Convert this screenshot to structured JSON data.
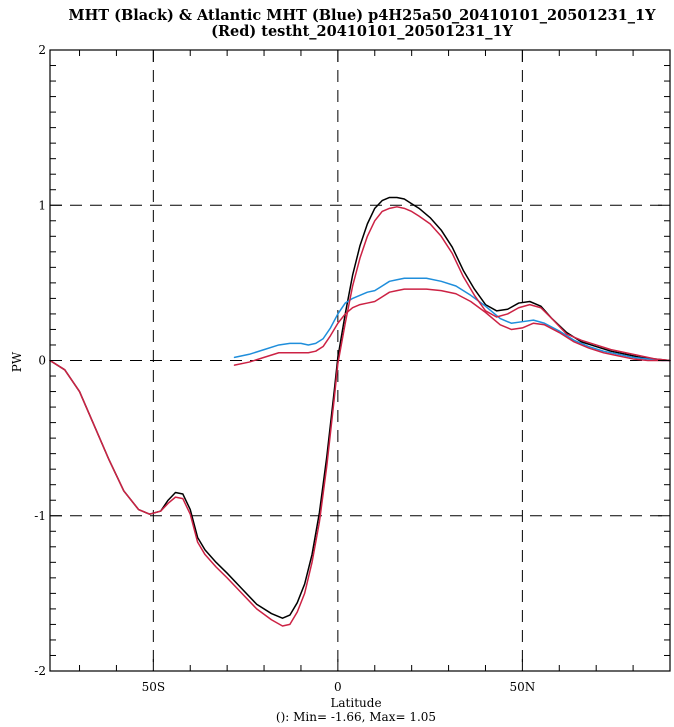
{
  "chart_data": {
    "type": "line",
    "title": "MHT (Black) & Atlantic MHT (Blue) p4H25a50_20410101_20501231_1Y",
    "subtitle": "(Red) testht_20410101_20501231_1Y",
    "xlabel": "Latitude",
    "ylabel": "PW",
    "footnote": "(): Min= -1.66, Max= 1.05",
    "xlim": [
      -78,
      90
    ],
    "ylim": [
      -2,
      2
    ],
    "x_major_ticks": [
      {
        "value": -50,
        "label": "50S"
      },
      {
        "value": 0,
        "label": "0"
      },
      {
        "value": 50,
        "label": "50N"
      }
    ],
    "y_major_ticks": [
      {
        "value": -2,
        "label": "-2"
      },
      {
        "value": -1,
        "label": "-1"
      },
      {
        "value": 0,
        "label": "0"
      },
      {
        "value": 1,
        "label": "1"
      },
      {
        "value": 2,
        "label": "2"
      }
    ],
    "grid": "dashed at major ticks",
    "series": [
      {
        "color": "#000000",
        "x": [
          -78,
          -74,
          -70,
          -66,
          -62,
          -58,
          -54,
          -51,
          -48,
          -46,
          -44,
          -42,
          -40,
          -38,
          -36,
          -33,
          -30,
          -26,
          -22,
          -18,
          -15,
          -13,
          -11,
          -9,
          -7,
          -5,
          -3,
          -1,
          0,
          2,
          4,
          6,
          8,
          10,
          12,
          14,
          16,
          18,
          20,
          22,
          25,
          28,
          31,
          34,
          37,
          40,
          43,
          46,
          49,
          52,
          55,
          58,
          62,
          66,
          70,
          74,
          78,
          82,
          86,
          90
        ],
        "y": [
          0,
          -0.06,
          -0.2,
          -0.42,
          -0.64,
          -0.84,
          -0.96,
          -0.99,
          -0.97,
          -0.9,
          -0.85,
          -0.86,
          -0.96,
          -1.14,
          -1.22,
          -1.3,
          -1.37,
          -1.47,
          -1.57,
          -1.63,
          -1.66,
          -1.64,
          -1.56,
          -1.44,
          -1.25,
          -0.98,
          -0.62,
          -0.2,
          0.02,
          0.3,
          0.55,
          0.74,
          0.88,
          0.98,
          1.03,
          1.05,
          1.05,
          1.04,
          1.01,
          0.98,
          0.92,
          0.84,
          0.73,
          0.58,
          0.46,
          0.36,
          0.32,
          0.33,
          0.37,
          0.38,
          0.35,
          0.27,
          0.18,
          0.12,
          0.09,
          0.06,
          0.04,
          0.02,
          0.01,
          0.0
        ]
      },
      {
        "color": "#1f8edb",
        "x": [
          -28,
          -24,
          -20,
          -16,
          -13,
          -10,
          -8,
          -6,
          -4,
          -2,
          0,
          2,
          4,
          6,
          8,
          10,
          12,
          14,
          16,
          18,
          20,
          24,
          28,
          32,
          36,
          40,
          44,
          47,
          50,
          53,
          56,
          60,
          64,
          68,
          72,
          76,
          80,
          84,
          88,
          90
        ],
        "y": [
          0.02,
          0.04,
          0.07,
          0.1,
          0.11,
          0.11,
          0.1,
          0.11,
          0.14,
          0.21,
          0.3,
          0.37,
          0.4,
          0.42,
          0.44,
          0.45,
          0.48,
          0.51,
          0.52,
          0.53,
          0.53,
          0.53,
          0.51,
          0.48,
          0.42,
          0.35,
          0.27,
          0.24,
          0.25,
          0.26,
          0.24,
          0.19,
          0.13,
          0.09,
          0.06,
          0.04,
          0.02,
          0.01,
          0.0,
          0.0
        ]
      },
      {
        "color": "#cc2244",
        "x": [
          -78,
          -74,
          -70,
          -66,
          -62,
          -58,
          -54,
          -51,
          -48,
          -46,
          -44,
          -42,
          -40,
          -38,
          -36,
          -33,
          -30,
          -26,
          -22,
          -18,
          -15,
          -13,
          -11,
          -9,
          -7,
          -5,
          -3,
          -1,
          0,
          2,
          4,
          6,
          8,
          10,
          12,
          14,
          16,
          18,
          20,
          22,
          25,
          28,
          31,
          34,
          37,
          40,
          43,
          46,
          49,
          52,
          55,
          58,
          62,
          66,
          70,
          74,
          78,
          82,
          86,
          90
        ],
        "y": [
          0,
          -0.06,
          -0.2,
          -0.42,
          -0.64,
          -0.84,
          -0.96,
          -0.99,
          -0.97,
          -0.92,
          -0.88,
          -0.89,
          -0.99,
          -1.17,
          -1.25,
          -1.33,
          -1.4,
          -1.5,
          -1.6,
          -1.67,
          -1.71,
          -1.7,
          -1.62,
          -1.5,
          -1.3,
          -1.04,
          -0.68,
          -0.25,
          -0.02,
          0.24,
          0.48,
          0.66,
          0.8,
          0.9,
          0.96,
          0.98,
          0.99,
          0.98,
          0.96,
          0.93,
          0.88,
          0.8,
          0.69,
          0.54,
          0.42,
          0.32,
          0.28,
          0.3,
          0.34,
          0.36,
          0.34,
          0.27,
          0.17,
          0.13,
          0.1,
          0.07,
          0.05,
          0.03,
          0.01,
          0.0
        ]
      },
      {
        "color": "#cc2244",
        "x": [
          -28,
          -24,
          -20,
          -16,
          -13,
          -10,
          -8,
          -6,
          -4,
          -2,
          0,
          2,
          4,
          6,
          8,
          10,
          12,
          14,
          16,
          18,
          20,
          24,
          28,
          32,
          36,
          40,
          44,
          47,
          50,
          53,
          56,
          60,
          64,
          68,
          72,
          76,
          80,
          84,
          88,
          90
        ],
        "y": [
          -0.03,
          -0.01,
          0.02,
          0.05,
          0.05,
          0.05,
          0.05,
          0.06,
          0.09,
          0.16,
          0.24,
          0.3,
          0.34,
          0.36,
          0.37,
          0.38,
          0.41,
          0.44,
          0.45,
          0.46,
          0.46,
          0.46,
          0.45,
          0.43,
          0.38,
          0.31,
          0.23,
          0.2,
          0.21,
          0.24,
          0.23,
          0.18,
          0.12,
          0.08,
          0.05,
          0.03,
          0.01,
          0.0,
          0.0,
          0.0
        ]
      }
    ]
  }
}
